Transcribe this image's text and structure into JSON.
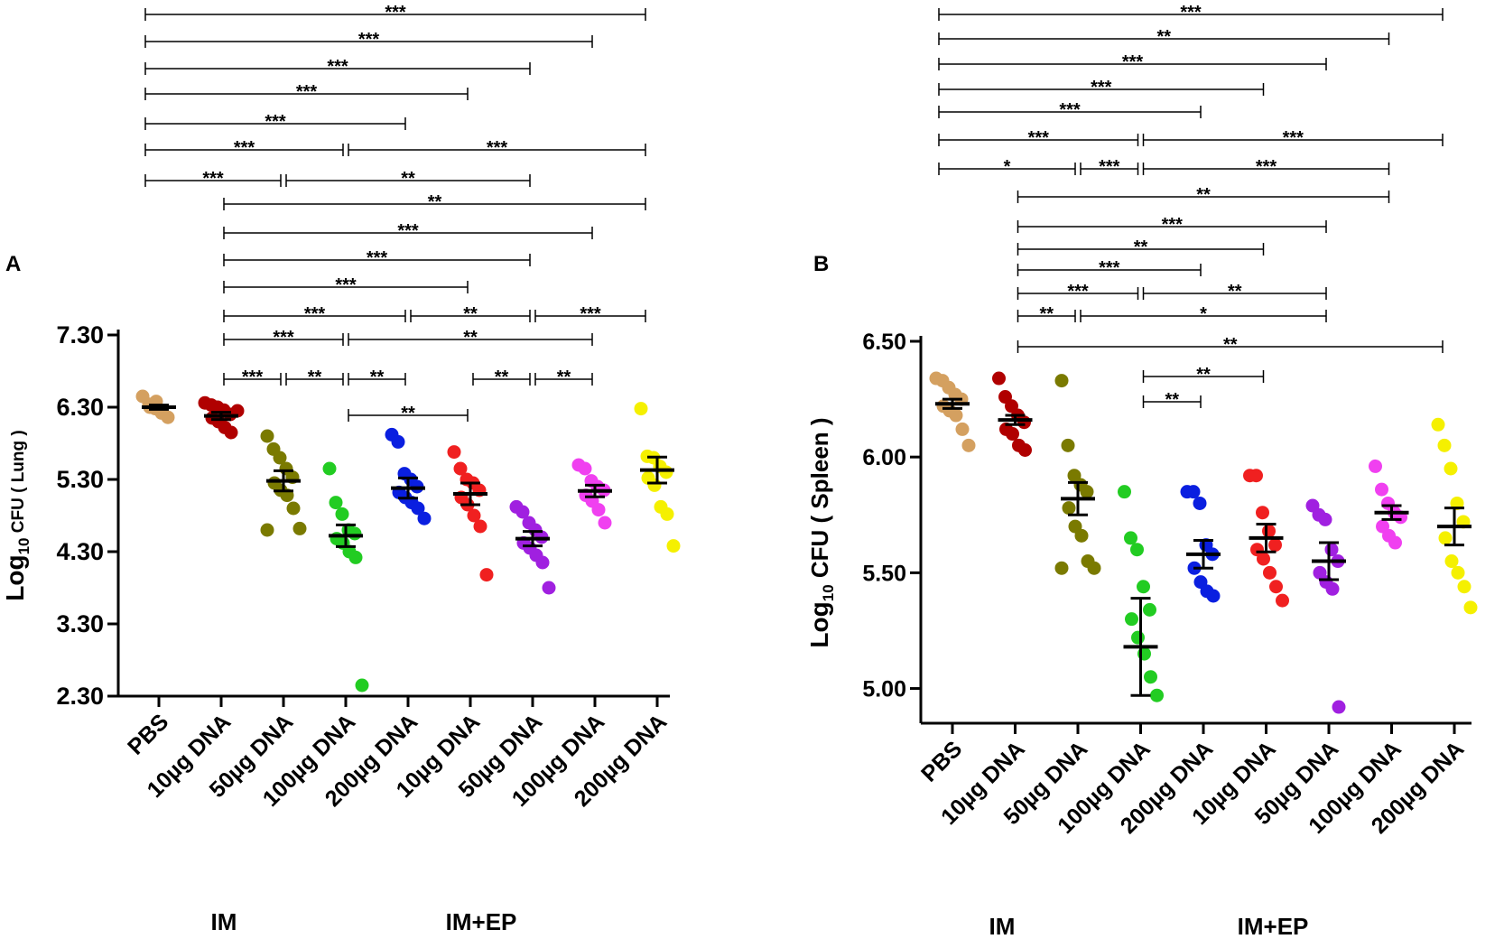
{
  "chart_data": [
    {
      "panel": "A",
      "type": "scatter",
      "ylabel": "Log10 CFU ( Lung )",
      "ylabel_main": "Log",
      "ylabel_sub": "10",
      "ylabel_rest": " CFU ( Lung )",
      "ylim": [
        2.3,
        7.3
      ],
      "yticks": [
        7.3,
        6.3,
        5.3,
        4.3,
        3.3,
        2.3
      ],
      "ytick_labels": [
        "7.30",
        "6.30",
        "5.30",
        "4.30",
        "3.30",
        "2.30"
      ],
      "categories": [
        "PBS",
        "10µg DNA",
        "50µg DNA",
        "100µg DNA",
        "200µg DNA",
        "10µg DNA",
        "50µg DNA",
        "100µg DNA",
        "200µg DNA"
      ],
      "group_labels": [
        "IM",
        "IM+EP"
      ],
      "colors": [
        "#D4A060",
        "#B00000",
        "#7A7A00",
        "#22CC22",
        "#0A1FE0",
        "#F02020",
        "#A020E0",
        "#F040F0",
        "#F5F000"
      ],
      "means": [
        6.3,
        6.18,
        5.28,
        4.52,
        5.18,
        5.1,
        4.48,
        5.14,
        5.43
      ],
      "sems": [
        0.03,
        0.05,
        0.14,
        0.15,
        0.14,
        0.15,
        0.1,
        0.08,
        0.18
      ],
      "points": [
        [
          6.45,
          6.34,
          6.28,
          6.22,
          6.16,
          6.3,
          6.38
        ],
        [
          6.36,
          6.33,
          6.3,
          6.26,
          6.2,
          6.15,
          6.1,
          6.02,
          5.95,
          6.25
        ],
        [
          5.9,
          5.72,
          5.6,
          5.45,
          5.33,
          5.25,
          5.15,
          5.08,
          4.9,
          4.62,
          4.6
        ],
        [
          5.45,
          4.98,
          4.82,
          4.6,
          4.55,
          4.48,
          4.42,
          4.3,
          4.22,
          2.45
        ],
        [
          5.92,
          5.82,
          5.38,
          5.3,
          5.2,
          5.12,
          5.05,
          4.98,
          4.9,
          4.76
        ],
        [
          5.68,
          5.45,
          5.3,
          5.25,
          5.15,
          5.05,
          4.95,
          4.8,
          4.65,
          3.98
        ],
        [
          4.92,
          4.85,
          4.7,
          4.6,
          4.5,
          4.42,
          4.35,
          4.25,
          4.15,
          3.8
        ],
        [
          5.5,
          5.45,
          5.28,
          5.2,
          5.15,
          5.08,
          5.0,
          4.88,
          4.7
        ],
        [
          6.28,
          5.62,
          5.6,
          5.48,
          5.4,
          5.32,
          5.22,
          4.92,
          4.82,
          4.38
        ]
      ],
      "comparisons": [
        {
          "from": 0,
          "to": 8,
          "label": "***"
        },
        {
          "from": 0,
          "to": 7,
          "label": "***"
        },
        {
          "from": 0,
          "to": 6,
          "label": "***"
        },
        {
          "from": 0,
          "to": 5,
          "label": "***"
        },
        {
          "from": 0,
          "to": 4,
          "label": "***"
        },
        {
          "from": 0,
          "to": 3,
          "label": "***"
        },
        {
          "from": 3,
          "to": 8,
          "label": "***"
        },
        {
          "from": 0,
          "to": 2,
          "label": "***"
        },
        {
          "from": 2,
          "to": 6,
          "label": "**"
        },
        {
          "from": 1,
          "to": 8,
          "label": "**"
        },
        {
          "from": 1,
          "to": 7,
          "label": "***"
        },
        {
          "from": 1,
          "to": 6,
          "label": "***"
        },
        {
          "from": 1,
          "to": 5,
          "label": "***"
        },
        {
          "from": 1,
          "to": 4,
          "label": "***"
        },
        {
          "from": 4,
          "to": 6,
          "label": "**"
        },
        {
          "from": 6,
          "to": 8,
          "label": "***"
        },
        {
          "from": 1,
          "to": 3,
          "label": "***"
        },
        {
          "from": 3,
          "to": 7,
          "label": "**"
        },
        {
          "from": 1,
          "to": 2,
          "label": "***"
        },
        {
          "from": 2,
          "to": 3,
          "label": "**"
        },
        {
          "from": 3,
          "to": 4,
          "label": "**"
        },
        {
          "from": 5,
          "to": 6,
          "label": "**"
        },
        {
          "from": 6,
          "to": 7,
          "label": "**"
        },
        {
          "from": 3,
          "to": 5,
          "label": "**"
        }
      ]
    },
    {
      "panel": "B",
      "type": "scatter",
      "ylabel": "Log10 CFU ( Spleen )",
      "ylabel_main": "Log",
      "ylabel_sub": "10",
      "ylabel_rest": " CFU ( Spleen )",
      "ylim": [
        4.85,
        6.5
      ],
      "yticks": [
        6.5,
        6.0,
        5.5,
        5.0
      ],
      "ytick_labels": [
        "6.50",
        "6.00",
        "5.50",
        "5.00"
      ],
      "categories": [
        "PBS",
        "10µg DNA",
        "50µg DNA",
        "100µg DNA",
        "200µg DNA",
        "10µg DNA",
        "50µg DNA",
        "100µg DNA",
        "200µg DNA"
      ],
      "group_labels": [
        "IM",
        "IM+EP"
      ],
      "colors": [
        "#D4A060",
        "#B00000",
        "#7A7A00",
        "#22CC22",
        "#0A1FE0",
        "#F02020",
        "#A020E0",
        "#F040F0",
        "#F5F000"
      ],
      "means": [
        6.23,
        6.16,
        5.82,
        5.18,
        5.58,
        5.65,
        5.55,
        5.76,
        5.7
      ],
      "sems": [
        0.02,
        0.02,
        0.07,
        0.21,
        0.06,
        0.06,
        0.08,
        0.03,
        0.08
      ],
      "points": [
        [
          6.34,
          6.33,
          6.3,
          6.27,
          6.25,
          6.22,
          6.2,
          6.18,
          6.12,
          6.05
        ],
        [
          6.34,
          6.26,
          6.22,
          6.18,
          6.15,
          6.12,
          6.1,
          6.05,
          6.03
        ],
        [
          6.33,
          6.05,
          5.92,
          5.88,
          5.85,
          5.78,
          5.7,
          5.66,
          5.55,
          5.52,
          5.52
        ],
        [
          5.85,
          5.65,
          5.6,
          5.44,
          5.34,
          5.3,
          5.22,
          5.15,
          5.05,
          4.97
        ],
        [
          5.85,
          5.85,
          5.8,
          5.62,
          5.58,
          5.52,
          5.46,
          5.42,
          5.4
        ],
        [
          5.92,
          5.92,
          5.76,
          5.68,
          5.62,
          5.6,
          5.56,
          5.5,
          5.44,
          5.38
        ],
        [
          5.79,
          5.75,
          5.73,
          5.6,
          5.55,
          5.5,
          5.46,
          5.43,
          4.92
        ],
        [
          5.96,
          5.86,
          5.8,
          5.76,
          5.74,
          5.7,
          5.66,
          5.63
        ],
        [
          6.14,
          6.05,
          5.95,
          5.8,
          5.72,
          5.65,
          5.55,
          5.5,
          5.44,
          5.35
        ]
      ],
      "comparisons": [
        {
          "from": 0,
          "to": 8,
          "label": "***"
        },
        {
          "from": 0,
          "to": 7,
          "label": "**"
        },
        {
          "from": 0,
          "to": 6,
          "label": "***"
        },
        {
          "from": 0,
          "to": 5,
          "label": "***"
        },
        {
          "from": 0,
          "to": 4,
          "label": "***"
        },
        {
          "from": 0,
          "to": 3,
          "label": "***"
        },
        {
          "from": 3,
          "to": 8,
          "label": "***"
        },
        {
          "from": 0,
          "to": 2,
          "label": "*"
        },
        {
          "from": 2,
          "to": 3,
          "label": "***"
        },
        {
          "from": 3,
          "to": 7,
          "label": "***"
        },
        {
          "from": 1,
          "to": 7,
          "label": "**"
        },
        {
          "from": 1,
          "to": 6,
          "label": "***"
        },
        {
          "from": 1,
          "to": 5,
          "label": "**"
        },
        {
          "from": 1,
          "to": 4,
          "label": "***"
        },
        {
          "from": 1,
          "to": 3,
          "label": "***"
        },
        {
          "from": 3,
          "to": 6,
          "label": "**"
        },
        {
          "from": 1,
          "to": 2,
          "label": "**"
        },
        {
          "from": 2,
          "to": 6,
          "label": "*"
        },
        {
          "from": 1,
          "to": 8,
          "label": "**"
        },
        {
          "from": 3,
          "to": 5,
          "label": "**"
        },
        {
          "from": 3,
          "to": 4,
          "label": "**"
        }
      ]
    }
  ]
}
